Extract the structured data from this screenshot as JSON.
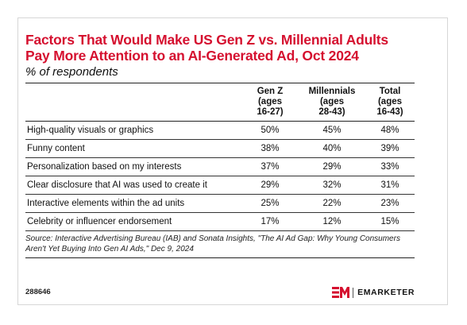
{
  "header": {
    "title": "Factors That Would Make US Gen Z vs. Millennial Adults Pay More Attention to an AI-Generated Ad, Oct 2024",
    "subtitle": "% of respondents"
  },
  "table": {
    "columns": [
      "",
      "Gen Z (ages 16-27)",
      "Millennials (ages 28-43)",
      "Total (ages 16-43)"
    ]
  },
  "chart_data": {
    "type": "table",
    "title": "Factors That Would Make US Gen Z vs. Millennial Adults Pay More Attention to an AI-Generated Ad, Oct 2024",
    "subtitle": "% of respondents",
    "columns": [
      "Gen Z (ages 16-27)",
      "Millennials (ages 28-43)",
      "Total (ages 16-43)"
    ],
    "rows": [
      {
        "label": "High-quality visuals or graphics",
        "values": [
          "50%",
          "45%",
          "48%"
        ]
      },
      {
        "label": "Funny content",
        "values": [
          "38%",
          "40%",
          "39%"
        ]
      },
      {
        "label": "Personalization based on my interests",
        "values": [
          "37%",
          "29%",
          "33%"
        ]
      },
      {
        "label": "Clear disclosure that AI was used to create it",
        "values": [
          "29%",
          "32%",
          "31%"
        ]
      },
      {
        "label": "Interactive elements within the ad units",
        "values": [
          "25%",
          "22%",
          "23%"
        ]
      },
      {
        "label": "Celebrity or influencer endorsement",
        "values": [
          "17%",
          "12%",
          "15%"
        ]
      }
    ]
  },
  "footer": {
    "source": "Source: Interactive Advertising Bureau (IAB) and Sonata Insights, \"The AI Ad Gap: Why Young Consumers Aren't Yet Buying Into Gen AI Ads,\" Dec 9, 2024",
    "chart_id": "288646",
    "brand_name": "EMARKETER",
    "brand_logo_icon": "em-logo-icon"
  },
  "colors": {
    "title": "#d5102f",
    "brand_red": "#d5102f",
    "text": "#111111",
    "rule": "#222222"
  }
}
